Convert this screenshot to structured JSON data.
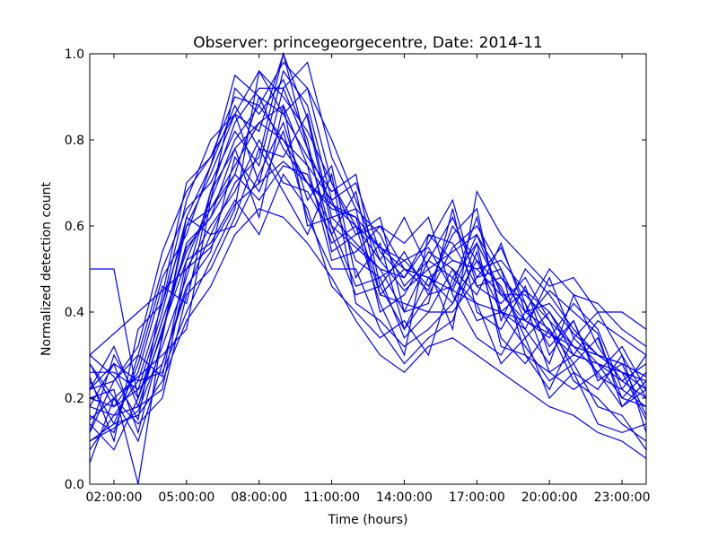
{
  "chart_data": {
    "type": "line",
    "title": "Observer: princegeorgecentre, Date: 2014-11",
    "xlabel": "Time (hours)",
    "ylabel": "Normalized detection count",
    "x_ticks": [
      "02:00:00",
      "05:00:00",
      "08:00:00",
      "11:00:00",
      "14:00:00",
      "17:00:00",
      "20:00:00",
      "23:00:00"
    ],
    "y_ticks": [
      "0.0",
      "0.2",
      "0.4",
      "0.6",
      "0.8",
      "1.0"
    ],
    "xlim_hours": [
      1.0,
      24.0
    ],
    "ylim": [
      0,
      1
    ],
    "grid": false,
    "line_color": "#0000ff",
    "x_hours": [
      1,
      2,
      3,
      4,
      5,
      6,
      7,
      8,
      9,
      10,
      11,
      12,
      13,
      14,
      15,
      16,
      17,
      18,
      19,
      20,
      21,
      22,
      23,
      24
    ],
    "series": [
      {
        "values": [
          0.5,
          0.5,
          0.2,
          0.35,
          0.6,
          0.72,
          0.86,
          0.82,
          1.0,
          0.78,
          0.65,
          0.62,
          0.55,
          0.52,
          0.55,
          0.45,
          0.58,
          0.48,
          0.4,
          0.42,
          0.35,
          0.3,
          0.28,
          0.25
        ]
      },
      {
        "values": [
          0.22,
          0.24,
          0.3,
          0.25,
          0.52,
          0.66,
          0.8,
          0.88,
          0.98,
          0.92,
          0.7,
          0.58,
          0.6,
          0.5,
          0.45,
          0.6,
          0.52,
          0.4,
          0.45,
          0.35,
          0.3,
          0.28,
          0.2,
          0.18
        ]
      },
      {
        "values": [
          0.15,
          0.2,
          0.1,
          0.28,
          0.45,
          0.58,
          0.7,
          0.76,
          1.0,
          0.85,
          0.6,
          0.55,
          0.5,
          0.4,
          0.52,
          0.62,
          0.48,
          0.55,
          0.42,
          0.32,
          0.38,
          0.25,
          0.22,
          0.3
        ]
      },
      {
        "values": [
          0.28,
          0.18,
          0.22,
          0.4,
          0.62,
          0.74,
          0.95,
          0.9,
          0.86,
          0.76,
          0.68,
          0.72,
          0.46,
          0.36,
          0.44,
          0.55,
          0.6,
          0.5,
          0.38,
          0.45,
          0.4,
          0.35,
          0.18,
          0.22
        ]
      },
      {
        "values": [
          0.1,
          0.13,
          0.17,
          0.32,
          0.48,
          0.68,
          0.84,
          0.92,
          0.92,
          0.98,
          0.76,
          0.64,
          0.58,
          0.46,
          0.52,
          0.48,
          0.56,
          0.45,
          0.36,
          0.28,
          0.44,
          0.32,
          0.24,
          0.2
        ]
      },
      {
        "values": [
          0.2,
          0.22,
          0.0,
          0.35,
          0.56,
          0.62,
          0.72,
          0.66,
          0.74,
          0.72,
          0.56,
          0.6,
          0.42,
          0.3,
          0.58,
          0.52,
          0.5,
          0.52,
          0.45,
          0.4,
          0.3,
          0.28,
          0.26,
          0.15
        ]
      },
      {
        "values": [
          0.25,
          0.1,
          0.36,
          0.42,
          0.66,
          0.8,
          0.86,
          0.7,
          0.92,
          0.78,
          0.58,
          0.68,
          0.44,
          0.42,
          0.4,
          0.4,
          0.48,
          0.5,
          0.3,
          0.22,
          0.34,
          0.4,
          0.3,
          0.12
        ]
      },
      {
        "values": [
          0.12,
          0.3,
          0.2,
          0.38,
          0.55,
          0.62,
          0.78,
          0.84,
          0.88,
          0.6,
          0.62,
          0.56,
          0.5,
          0.48,
          0.56,
          0.66,
          0.46,
          0.42,
          0.48,
          0.38,
          0.26,
          0.22,
          0.3,
          0.2
        ]
      },
      {
        "values": [
          0.08,
          0.16,
          0.24,
          0.26,
          0.4,
          0.52,
          0.64,
          0.96,
          0.9,
          0.82,
          0.7,
          0.6,
          0.52,
          0.45,
          0.5,
          0.54,
          0.58,
          0.44,
          0.38,
          0.34,
          0.42,
          0.36,
          0.22,
          0.18
        ]
      },
      {
        "values": [
          0.3,
          0.25,
          0.15,
          0.44,
          0.7,
          0.76,
          0.9,
          0.88,
          0.8,
          0.74,
          0.66,
          0.52,
          0.48,
          0.52,
          0.46,
          0.58,
          0.64,
          0.38,
          0.5,
          0.44,
          0.36,
          0.3,
          0.26,
          0.24
        ]
      },
      {
        "values": [
          0.18,
          0.28,
          0.12,
          0.34,
          0.62,
          0.58,
          0.6,
          0.72,
          0.84,
          0.66,
          0.74,
          0.48,
          0.56,
          0.36,
          0.48,
          0.42,
          0.52,
          0.46,
          0.34,
          0.4,
          0.32,
          0.26,
          0.32,
          0.22
        ]
      },
      {
        "values": [
          0.24,
          0.14,
          0.28,
          0.48,
          0.58,
          0.74,
          0.88,
          0.78,
          0.76,
          0.86,
          0.62,
          0.64,
          0.4,
          0.44,
          0.54,
          0.5,
          0.44,
          0.56,
          0.4,
          0.36,
          0.28,
          0.34,
          0.2,
          0.26
        ]
      },
      {
        "values": [
          0.05,
          0.2,
          0.25,
          0.3,
          0.36,
          0.66,
          0.92,
          0.86,
          0.94,
          0.8,
          0.54,
          0.58,
          0.62,
          0.4,
          0.42,
          0.64,
          0.4,
          0.36,
          0.46,
          0.3,
          0.38,
          0.24,
          0.28,
          0.16
        ]
      },
      {
        "values": [
          0.22,
          0.32,
          0.18,
          0.22,
          0.5,
          0.6,
          0.68,
          0.8,
          0.7,
          0.68,
          0.58,
          0.44,
          0.46,
          0.54,
          0.44,
          0.46,
          0.62,
          0.4,
          0.36,
          0.48,
          0.34,
          0.28,
          0.24,
          0.28
        ]
      },
      {
        "values": [
          0.16,
          0.12,
          0.3,
          0.5,
          0.64,
          0.7,
          0.82,
          0.74,
          0.96,
          0.88,
          0.66,
          0.7,
          0.54,
          0.48,
          0.58,
          0.56,
          0.46,
          0.48,
          0.42,
          0.26,
          0.3,
          0.38,
          0.34,
          0.3
        ]
      },
      {
        "values": [
          0.26,
          0.26,
          0.22,
          0.28,
          0.46,
          0.54,
          0.76,
          0.68,
          0.82,
          0.62,
          0.5,
          0.5,
          0.36,
          0.28,
          0.34,
          0.38,
          0.54,
          0.34,
          0.28,
          0.36,
          0.24,
          0.2,
          0.14,
          0.1
        ]
      },
      {
        "values": [
          0.14,
          0.08,
          0.2,
          0.38,
          0.54,
          0.64,
          0.72,
          0.9,
          0.78,
          0.7,
          0.6,
          0.46,
          0.48,
          0.34,
          0.4,
          0.5,
          0.38,
          0.4,
          0.32,
          0.24,
          0.28,
          0.18,
          0.16,
          0.08
        ]
      },
      {
        "values": [
          0.2,
          0.18,
          0.26,
          0.46,
          0.42,
          0.68,
          0.78,
          0.62,
          0.88,
          0.74,
          0.52,
          0.54,
          0.6,
          0.56,
          0.62,
          0.44,
          0.34,
          0.3,
          0.4,
          0.5,
          0.44,
          0.42,
          0.36,
          0.32
        ]
      },
      {
        "values": [
          0.28,
          0.2,
          0.14,
          0.2,
          0.44,
          0.5,
          0.62,
          0.78,
          0.68,
          0.58,
          0.72,
          0.42,
          0.38,
          0.32,
          0.36,
          0.42,
          0.56,
          0.32,
          0.3,
          0.26,
          0.22,
          0.26,
          0.18,
          0.24
        ]
      },
      {
        "values": [
          0.12,
          0.24,
          0.32,
          0.54,
          0.68,
          0.76,
          0.86,
          0.96,
          0.86,
          0.92,
          0.8,
          0.66,
          0.52,
          0.62,
          0.5,
          0.36,
          0.68,
          0.58,
          0.52,
          0.46,
          0.48,
          0.4,
          0.4,
          0.36
        ]
      },
      {
        "values": [
          0.18,
          0.16,
          0.18,
          0.36,
          0.52,
          0.56,
          0.66,
          0.58,
          0.72,
          0.64,
          0.46,
          0.4,
          0.34,
          0.38,
          0.3,
          0.48,
          0.42,
          0.28,
          0.34,
          0.2,
          0.26,
          0.14,
          0.12,
          0.14
        ]
      },
      {
        "values": [
          0.22,
          0.28,
          0.24,
          0.42,
          0.6,
          0.64,
          0.74,
          0.84,
          0.8,
          0.7,
          0.64,
          0.62,
          0.44,
          0.5,
          0.48,
          0.52,
          0.5,
          0.44,
          0.44,
          0.38,
          0.32,
          0.3,
          0.26,
          0.22
        ]
      },
      {
        "values": [
          0.3,
          0.35,
          0.4,
          0.45,
          0.5,
          0.55,
          0.65,
          0.7,
          0.75,
          0.7,
          0.65,
          0.6,
          0.55,
          0.5,
          0.48,
          0.45,
          0.42,
          0.4,
          0.38,
          0.35,
          0.32,
          0.3,
          0.28,
          0.25
        ]
      },
      {
        "values": [
          0.1,
          0.14,
          0.16,
          0.24,
          0.38,
          0.46,
          0.58,
          0.64,
          0.62,
          0.56,
          0.48,
          0.38,
          0.3,
          0.26,
          0.32,
          0.34,
          0.3,
          0.26,
          0.22,
          0.18,
          0.16,
          0.12,
          0.1,
          0.06
        ]
      }
    ]
  }
}
